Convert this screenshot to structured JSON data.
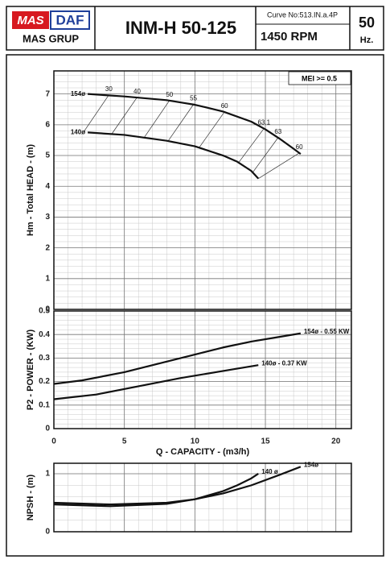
{
  "header": {
    "logo_mas": "MAS",
    "logo_daf": "DAF",
    "company": "MAS GRUP",
    "title": "INM-H 50-125",
    "curve_no": "Curve No:513.IN.a.4P",
    "speed": "1450 RPM",
    "frequency": "50",
    "frequency_unit": "Hz."
  },
  "chart_data": [
    {
      "type": "line",
      "ylabel": "Hm - Total HEAD - (m)",
      "note": "MEI >= 0.5",
      "xlim": [
        0,
        21.1
      ],
      "ylim": [
        0,
        7.75
      ],
      "xticks": [
        0,
        5,
        10,
        15,
        20
      ],
      "yticks": [
        0,
        1,
        2,
        3,
        4,
        5,
        6,
        7
      ],
      "grid": true,
      "show_xtick_labels": false,
      "series_label": "start",
      "series": [
        {
          "name": "154ø",
          "color": "#111111",
          "x": [
            2.4,
            5,
            8,
            10,
            12,
            14,
            15,
            16,
            17,
            17.5
          ],
          "values": [
            7.0,
            6.92,
            6.8,
            6.65,
            6.43,
            6.1,
            5.85,
            5.55,
            5.22,
            5.05
          ]
        },
        {
          "name": "140ø",
          "color": "#111111",
          "x": [
            2.4,
            5,
            8,
            10,
            12,
            13,
            14,
            14.5
          ],
          "values": [
            5.75,
            5.67,
            5.48,
            5.3,
            5.0,
            4.8,
            4.5,
            4.25
          ]
        }
      ],
      "annotations": [
        {
          "text": "30",
          "x": 3.9,
          "y": 6.97
        },
        {
          "text": "40",
          "x": 5.9,
          "y": 6.89
        },
        {
          "text": "50",
          "x": 8.2,
          "y": 6.79
        },
        {
          "text": "55",
          "x": 9.9,
          "y": 6.66
        },
        {
          "text": "60",
          "x": 12.1,
          "y": 6.42
        },
        {
          "text": "63.1",
          "x": 14.9,
          "y": 5.88
        },
        {
          "text": "63",
          "x": 15.9,
          "y": 5.58
        },
        {
          "text": "60",
          "x": 17.4,
          "y": 5.08
        }
      ]
    },
    {
      "type": "line",
      "ylabel": "P2 - POWER - (KW)",
      "xlabel": "Q - CAPACITY - (m3/h)",
      "xlim": [
        0,
        21.1
      ],
      "ylim": [
        0,
        0.5
      ],
      "xticks": [
        0,
        5,
        10,
        15,
        20
      ],
      "yticks": [
        0,
        0.1,
        0.2,
        0.3,
        0.4,
        0.5
      ],
      "grid": true,
      "show_xtick_labels": true,
      "series_label": "end",
      "series": [
        {
          "name": "154ø - 0.55 KW",
          "color": "#111111",
          "x": [
            0,
            2,
            5,
            8,
            10,
            12,
            14,
            16,
            17.5
          ],
          "values": [
            0.19,
            0.205,
            0.24,
            0.285,
            0.315,
            0.345,
            0.37,
            0.39,
            0.405
          ]
        },
        {
          "name": "140ø - 0.37 KW",
          "color": "#111111",
          "x": [
            0,
            3,
            6,
            9,
            12,
            14.5
          ],
          "values": [
            0.125,
            0.145,
            0.18,
            0.215,
            0.245,
            0.27
          ]
        }
      ]
    },
    {
      "type": "line",
      "ylabel": "NPSH - (m)",
      "xlim": [
        0,
        21.1
      ],
      "ylim": [
        0,
        1.18
      ],
      "xticks": [
        0,
        5,
        10,
        15,
        20
      ],
      "yticks": [
        0,
        1
      ],
      "grid": true,
      "show_xtick_labels": false,
      "series_label": "end",
      "series": [
        {
          "name": "154ø",
          "color": "#111111",
          "x": [
            0,
            4,
            8,
            10,
            12,
            14,
            16,
            17.5
          ],
          "values": [
            0.5,
            0.47,
            0.5,
            0.56,
            0.66,
            0.8,
            0.98,
            1.12
          ]
        },
        {
          "name": "140 ø",
          "color": "#111111",
          "x": [
            0,
            4,
            8,
            10,
            12,
            13,
            14,
            14.5
          ],
          "values": [
            0.47,
            0.44,
            0.48,
            0.56,
            0.7,
            0.8,
            0.92,
            1.0
          ]
        }
      ]
    }
  ]
}
